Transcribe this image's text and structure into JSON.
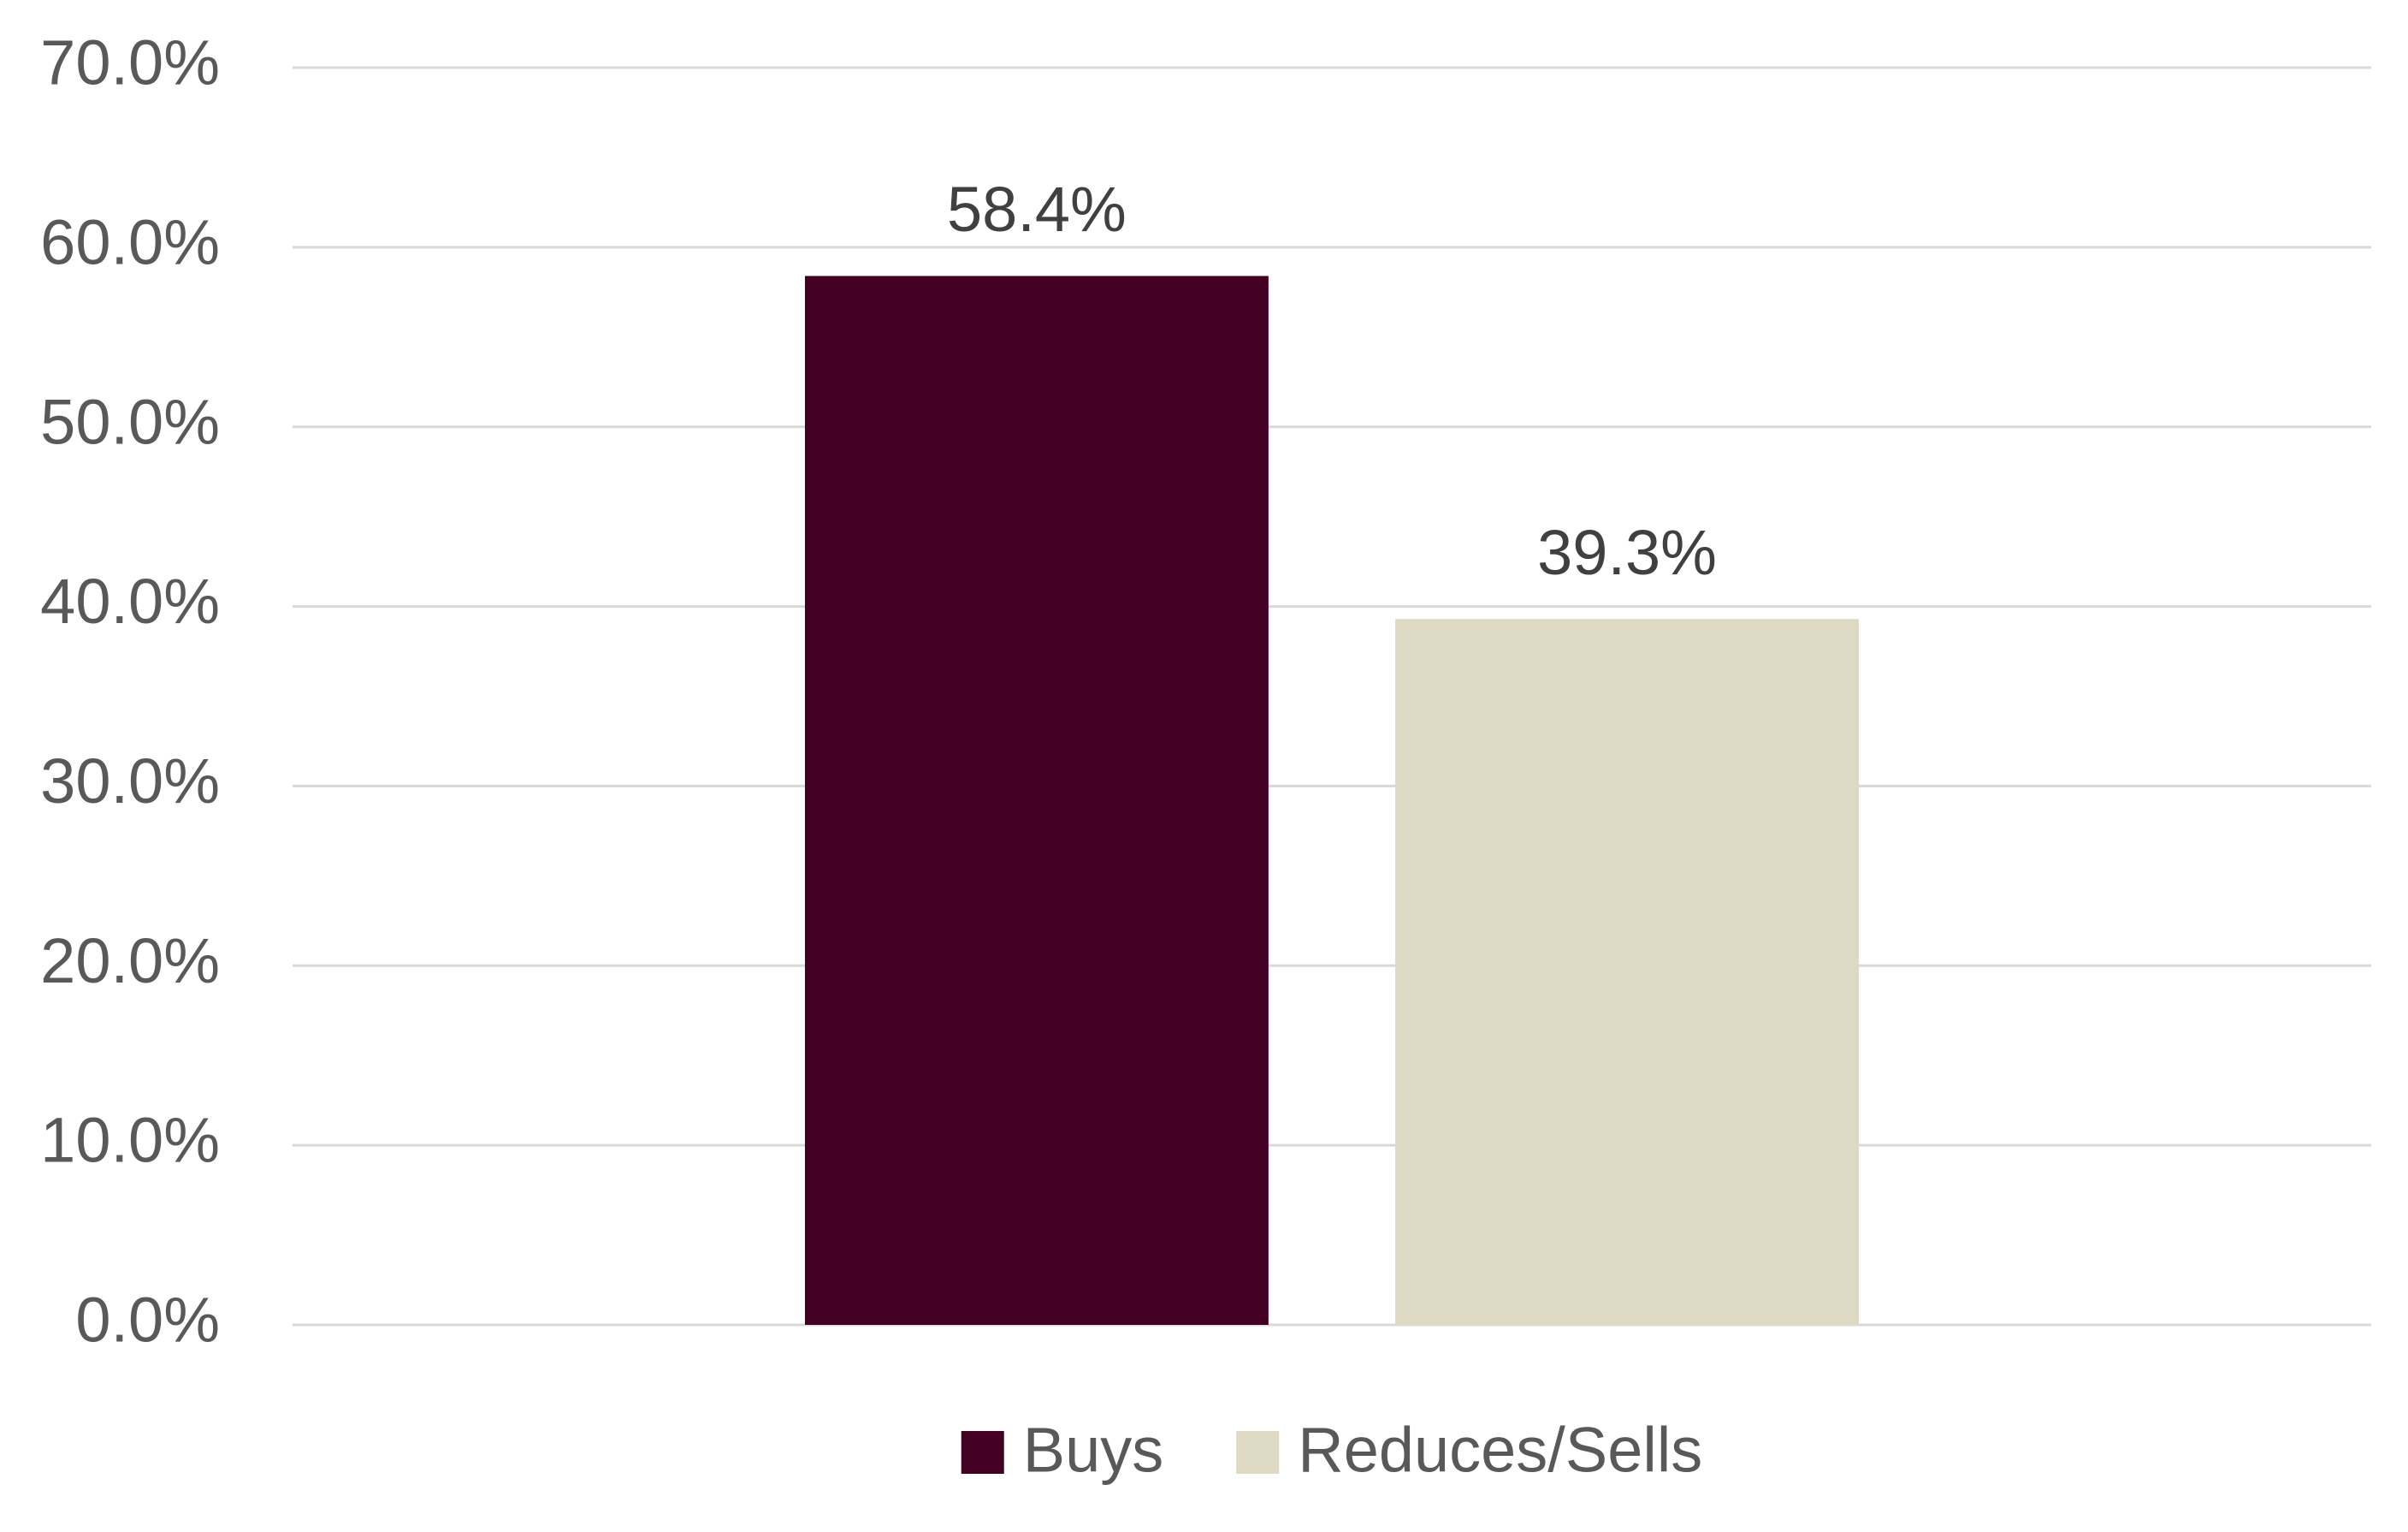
{
  "chart_data": {
    "type": "bar",
    "categories": [
      null
    ],
    "series": [
      {
        "name": "Buys",
        "color": "#440022",
        "values": [
          58.4
        ],
        "value_labels": [
          "58.4%"
        ]
      },
      {
        "name": "Reduces/Sells",
        "color": "#ddd9c3",
        "values": [
          39.3
        ],
        "value_labels": [
          "39.3%"
        ]
      }
    ],
    "ylim": [
      0,
      70
    ],
    "yticks": [
      {
        "value": 0,
        "label": "0.0%"
      },
      {
        "value": 10,
        "label": "10.0%"
      },
      {
        "value": 20,
        "label": "20.0%"
      },
      {
        "value": 30,
        "label": "30.0%"
      },
      {
        "value": 40,
        "label": "40.0%"
      },
      {
        "value": 50,
        "label": "50.0%"
      },
      {
        "value": 60,
        "label": "60.0%"
      },
      {
        "value": 70,
        "label": "70.0%"
      }
    ],
    "grid": true,
    "legend": "bottom"
  }
}
